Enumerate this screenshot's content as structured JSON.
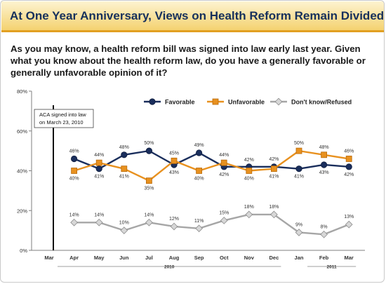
{
  "title": "At One Year Anniversary, Views on Health Reform Remain Divided",
  "question": "As you may know, a health reform bill was signed into law early last year. Given what you know about the health reform law, do you have a generally favorable or generally unfavorable opinion of it?",
  "colors": {
    "favorable": "#1a2e5c",
    "unfavorable": "#e8911f",
    "dontknow": "#a6a6a6",
    "title_bar": "#f4d270",
    "title_text": "#16305c"
  },
  "chart_data": {
    "type": "line",
    "categories": [
      "Mar",
      "Apr",
      "May",
      "Jun",
      "Jul",
      "Aug",
      "Sep",
      "Oct",
      "Nov",
      "Dec",
      "Jan",
      "Feb",
      "Mar"
    ],
    "year_groups": [
      {
        "label": "2010",
        "from": 0,
        "to": 9
      },
      {
        "label": "2011",
        "from": 10,
        "to": 12
      }
    ],
    "ylim": [
      0,
      80
    ],
    "yticks": [
      "0%",
      "20%",
      "40%",
      "60%",
      "80%"
    ],
    "legend_position": "top-right",
    "annotation": "ACA signed into law on March 23, 2010",
    "series": [
      {
        "name": "Favorable",
        "key": "favorable",
        "marker": "circle",
        "values": [
          null,
          46,
          41,
          48,
          50,
          43,
          49,
          42,
          42,
          42,
          41,
          43,
          42
        ],
        "labels": [
          null,
          "46%",
          "41%",
          "48%",
          "50%",
          "43%",
          "49%",
          "42%",
          "42%",
          "42%",
          "41%",
          "43%",
          "42%"
        ]
      },
      {
        "name": "Unfavorable",
        "key": "unfavorable",
        "marker": "square",
        "values": [
          null,
          40,
          44,
          41,
          35,
          45,
          40,
          44,
          40,
          41,
          50,
          48,
          46
        ],
        "labels": [
          null,
          "40%",
          "44%",
          "41%",
          "35%",
          "45%",
          "40%",
          "44%",
          "40%",
          "41%",
          "50%",
          "48%",
          "46%"
        ]
      },
      {
        "name": "Don't know/Refused",
        "key": "dontknow",
        "marker": "diamond",
        "values": [
          null,
          14,
          14,
          10,
          14,
          12,
          11,
          15,
          18,
          18,
          9,
          8,
          13
        ],
        "labels": [
          null,
          "14%",
          "14%",
          "10%",
          "14%",
          "12%",
          "11%",
          "15%",
          "18%",
          "18%",
          "9%",
          "8%",
          "13%"
        ]
      }
    ]
  }
}
